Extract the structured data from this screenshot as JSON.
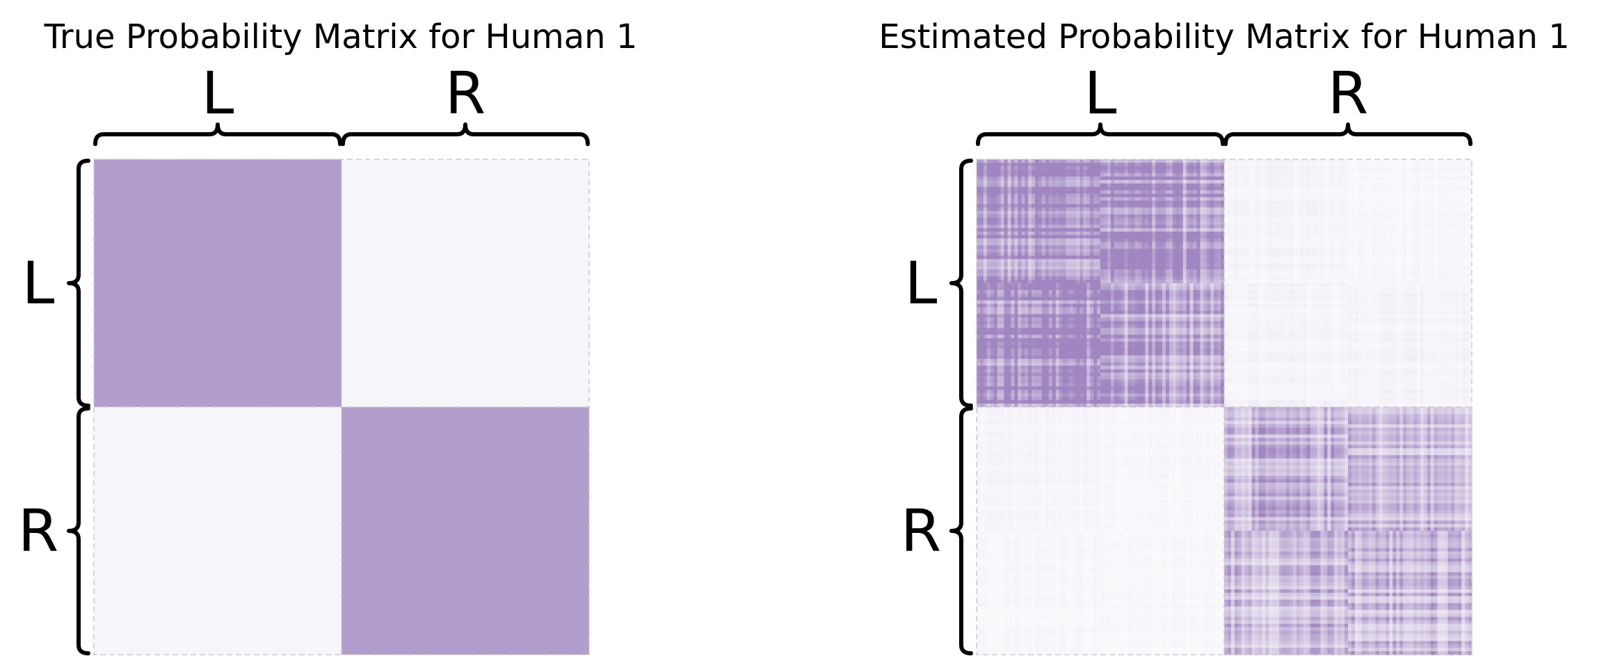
{
  "chart_data": [
    {
      "type": "heatmap",
      "title": "True Probability Matrix for Human 1",
      "row_groups": [
        "L",
        "R"
      ],
      "col_groups": [
        "L",
        "R"
      ],
      "block_values": [
        [
          0.8,
          0.05
        ],
        [
          0.05,
          0.8
        ]
      ],
      "colormap": "Purples",
      "vmin": 0,
      "vmax": 1,
      "heterogeneous": false
    },
    {
      "type": "heatmap",
      "title": "Estimated Probability Matrix for Human 1",
      "row_groups": [
        "L",
        "R"
      ],
      "col_groups": [
        "L",
        "R"
      ],
      "block_values": [
        [
          0.8,
          0.05
        ],
        [
          0.05,
          0.8
        ]
      ],
      "colormap": "Purples",
      "vmin": 0,
      "vmax": 1,
      "heterogeneous": true
    }
  ],
  "colors": {
    "low": "#fcfbfd",
    "high": "#54278f",
    "brace": "#000000",
    "frame": "#cccccc"
  }
}
